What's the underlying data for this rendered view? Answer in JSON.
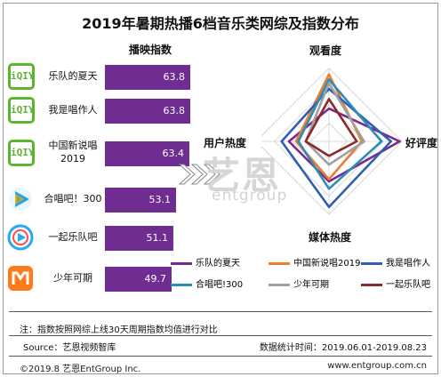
{
  "title": "2019年暑期热播6档音乐类网综及指数分布",
  "bar_header": "播映指数",
  "watermark": {
    "cn": "艺恩",
    "en": "entgroup"
  },
  "chart_data": [
    {
      "type": "bar",
      "orientation": "horizontal",
      "title": "播映指数",
      "categories": [
        "乐队的夏天",
        "我是唱作人",
        "中国新说唱2019",
        "合唱吧！300",
        "一起乐队吧",
        "少年可期"
      ],
      "values": [
        63.8,
        63.8,
        63.4,
        53.1,
        51.1,
        49.7
      ],
      "value_labels": [
        "63.8",
        "63.8",
        "63.4",
        "53.1",
        "51.1",
        "49.7"
      ],
      "color": "#6f2c91"
    },
    {
      "type": "radar",
      "axes": [
        "观看度",
        "好评度",
        "媒体热度",
        "用户热度"
      ],
      "legend_position": "bottom",
      "series": [
        {
          "name": "乐队的夏天",
          "color": "#7b2a8c",
          "values": [
            0.45,
            0.97,
            0.55,
            0.55
          ]
        },
        {
          "name": "中国新说唱2019",
          "color": "#ed7d31",
          "values": [
            0.92,
            0.45,
            0.52,
            0.45
          ]
        },
        {
          "name": "我是唱作人",
          "color": "#2e5fb0",
          "values": [
            0.72,
            0.85,
            0.9,
            0.65
          ]
        },
        {
          "name": "合唱吧!300",
          "color": "#2e8db5",
          "values": [
            0.85,
            0.72,
            0.65,
            0.42
          ]
        },
        {
          "name": "少年可期",
          "color": "#a0a0a0",
          "values": [
            0.8,
            0.48,
            0.32,
            0.32
          ]
        },
        {
          "name": "一起乐队吧",
          "color": "#8b2a2a",
          "values": [
            0.58,
            0.38,
            0.2,
            0.32
          ]
        }
      ]
    }
  ],
  "rows": [
    {
      "name": "乐队的夏天",
      "logo": "iqiyi-logo",
      "logo_text": "iQIY",
      "value": "63.8"
    },
    {
      "name": "我是唱作人",
      "logo": "iqiyi-logo",
      "logo_text": "iQIY",
      "value": "63.8"
    },
    {
      "name": "中国新说唱\n2019",
      "logo": "iqiyi-logo",
      "logo_text": "iQIY",
      "value": "63.4"
    },
    {
      "name": "合唱吧！300",
      "logo": "tencent-video-logo",
      "value": "53.1"
    },
    {
      "name": "一起乐队吧",
      "logo": "youku-logo",
      "value": "51.1"
    },
    {
      "name": "少年可期",
      "logo": "mango-tv-logo",
      "value": "49.7"
    }
  ],
  "note": "注：指数按照网综上线30天周期指数均值进行对比",
  "source": "Source：艺恩视频智库",
  "stat_period": "数据统计时间：2019.06.01-2019.08.23",
  "copyright": "©2019.8 艺恩EntGroup Inc.",
  "website": "www.entgroup.com.cn"
}
